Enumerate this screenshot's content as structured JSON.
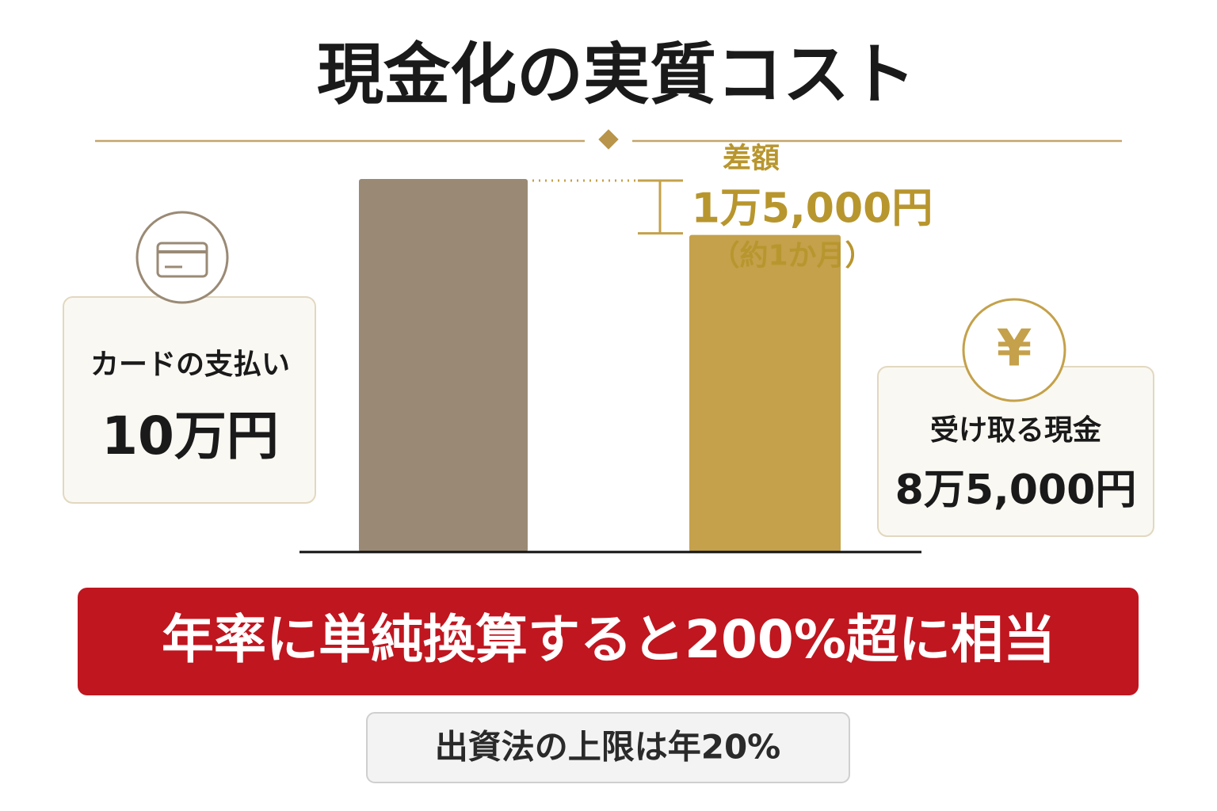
{
  "chart_data": {
    "type": "bar",
    "title": "現金化の実質コスト",
    "categories": [
      "カードの支払い",
      "受け取る現金"
    ],
    "values": [
      100000,
      85000
    ],
    "value_labels": [
      "10万円",
      "8万5,000円"
    ],
    "colors": [
      "#9a8a75",
      "#c4a14a"
    ],
    "icon_symbol": "¥",
    "annotations": {
      "difference_title": "差額",
      "difference": "1万5,000円",
      "difference_note": "（約1か月）"
    },
    "banner": "年率に単純換算すると200%超に相当",
    "note": "出資法の上限は年20%"
  }
}
